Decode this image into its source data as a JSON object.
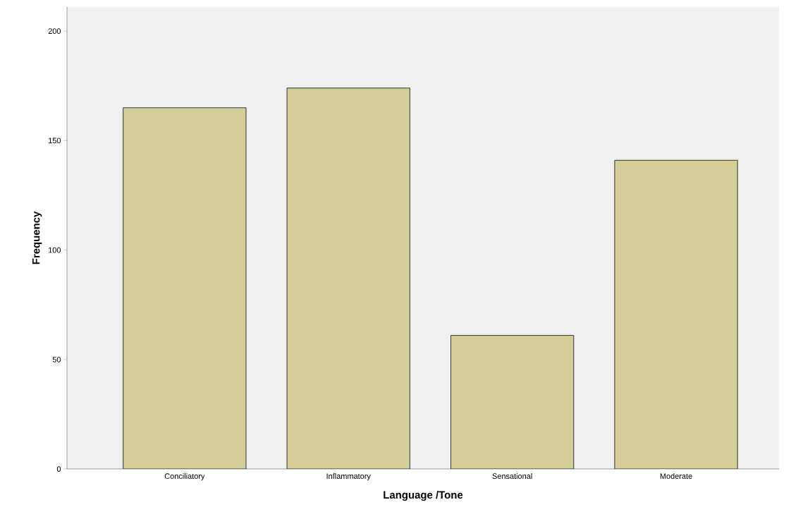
{
  "chart_data": {
    "type": "bar",
    "xlabel": "Language /Tone",
    "ylabel": "Frequency",
    "categories": [
      "Conciliatory",
      "Inflammatory",
      "Sensational",
      "Moderate"
    ],
    "values": [
      165,
      174,
      61,
      141
    ],
    "color": "#d3ce98",
    "ylim": [
      0,
      211
    ],
    "yticks": [
      0,
      50,
      100,
      150,
      200
    ],
    "grid": false
  }
}
